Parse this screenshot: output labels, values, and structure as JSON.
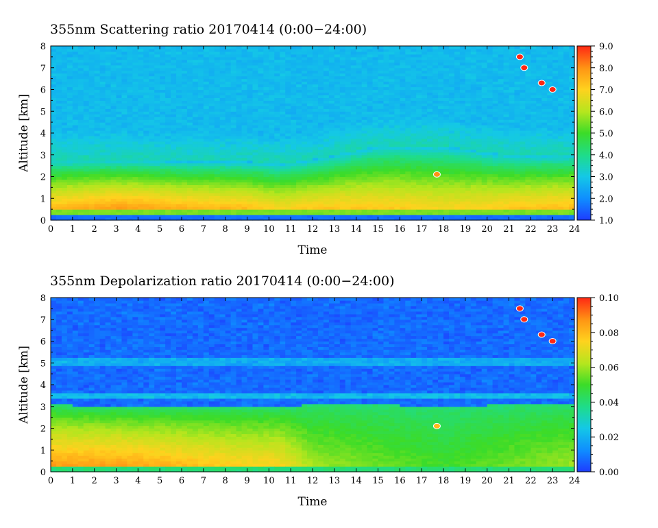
{
  "chart_data": [
    {
      "type": "heatmap",
      "title": "355nm Scattering ratio  20170414 (0:00−24:00)",
      "xlabel": "Time",
      "ylabel": "Altitude [km]",
      "xlim": [
        0,
        24
      ],
      "ylim": [
        0,
        8
      ],
      "x_ticks": [
        "0",
        "1",
        "2",
        "3",
        "4",
        "5",
        "6",
        "7",
        "8",
        "9",
        "10",
        "11",
        "12",
        "13",
        "14",
        "15",
        "16",
        "17",
        "18",
        "19",
        "20",
        "21",
        "22",
        "23",
        "24"
      ],
      "y_ticks": [
        "0",
        "1",
        "2",
        "3",
        "4",
        "5",
        "6",
        "7",
        "8"
      ],
      "colorbar": {
        "min": 1.0,
        "max": 9.0,
        "ticks": [
          "1.0",
          "2.0",
          "3.0",
          "4.0",
          "5.0",
          "6.0",
          "7.0",
          "8.0",
          "9.0"
        ]
      },
      "profile_by_time": {
        "time": [
          0,
          3,
          6,
          9,
          10.5,
          12,
          15,
          18,
          21,
          24
        ],
        "top_of_layer_km": [
          2.8,
          2.8,
          2.7,
          2.7,
          2.6,
          2.8,
          3.4,
          3.4,
          3.0,
          3.0
        ],
        "peak_ratio_near_1km": [
          7.5,
          8.0,
          7.7,
          7.5,
          7.0,
          7.3,
          7.3,
          7.0,
          7.3,
          7.5
        ]
      },
      "cloud_patches": [
        {
          "time": 21.5,
          "altitude": 7.5,
          "ratio": 9.0
        },
        {
          "time": 21.7,
          "altitude": 7.0,
          "ratio": 9.0
        },
        {
          "time": 22.5,
          "altitude": 6.3,
          "ratio": 9.0
        },
        {
          "time": 23.0,
          "altitude": 6.0,
          "ratio": 9.0
        },
        {
          "time": 17.7,
          "altitude": 2.1,
          "ratio": 8.0
        }
      ]
    },
    {
      "type": "heatmap",
      "title": "355nm Depolarization ratio  20170414 (0:00−24:00)",
      "xlabel": "Time",
      "ylabel": "Altitude [km]",
      "xlim": [
        0,
        24
      ],
      "ylim": [
        0,
        8
      ],
      "x_ticks": [
        "0",
        "1",
        "2",
        "3",
        "4",
        "5",
        "6",
        "7",
        "8",
        "9",
        "10",
        "11",
        "12",
        "13",
        "14",
        "15",
        "16",
        "17",
        "18",
        "19",
        "20",
        "21",
        "22",
        "23",
        "24"
      ],
      "y_ticks": [
        "0",
        "1",
        "2",
        "3",
        "4",
        "5",
        "6",
        "7",
        "8"
      ],
      "colorbar": {
        "min": 0.0,
        "max": 0.1,
        "ticks": [
          "0.00",
          "0.02",
          "0.04",
          "0.06",
          "0.08",
          "0.10"
        ]
      },
      "profile_by_time": {
        "time": [
          0,
          3,
          6,
          9,
          10.5,
          12,
          15,
          18,
          21,
          24
        ],
        "top_of_layer_km": [
          3.1,
          3.0,
          3.0,
          3.0,
          3.0,
          3.1,
          3.1,
          3.0,
          3.1,
          3.1
        ],
        "peak_ratio_near_1_5km": [
          0.085,
          0.085,
          0.08,
          0.075,
          0.075,
          0.06,
          0.055,
          0.05,
          0.055,
          0.06
        ]
      },
      "cloud_patches": [
        {
          "time": 21.5,
          "altitude": 7.5,
          "ratio": 0.1
        },
        {
          "time": 21.7,
          "altitude": 7.0,
          "ratio": 0.1
        },
        {
          "time": 22.5,
          "altitude": 6.3,
          "ratio": 0.1
        },
        {
          "time": 23.0,
          "altitude": 6.0,
          "ratio": 0.1
        },
        {
          "time": 17.7,
          "altitude": 2.1,
          "ratio": 0.08
        }
      ]
    }
  ]
}
